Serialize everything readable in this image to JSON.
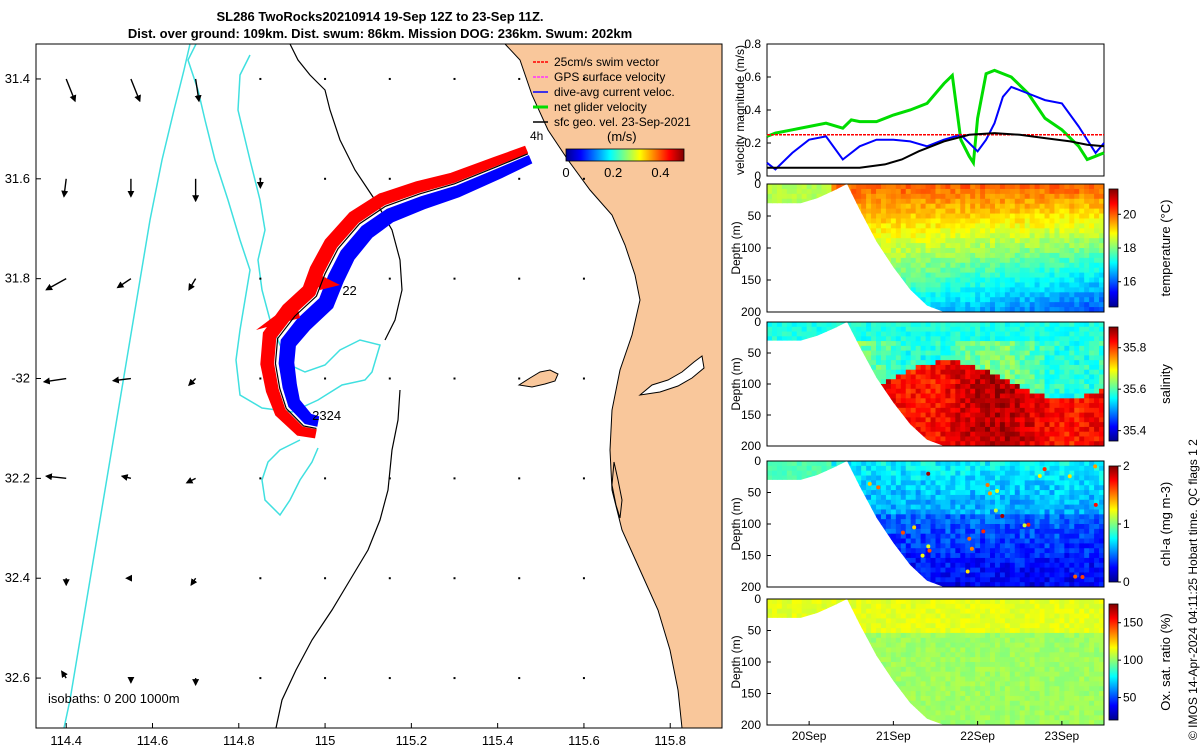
{
  "title_line1": "SL286 TwoRocks20210914 19-Sep 12Z to 23-Sep 11Z.",
  "title_line2": "Dist. over ground: 109km. Dist. swum: 86km. Mission DOG: 236km. Swum: 202km",
  "stamp": "© IMOS 14-Apr-2024 04:11:25 Hobart time. QC flags 1 2",
  "colors": {
    "land": "#f9c79b",
    "coast": "#000000",
    "isobath": "#40e0e0",
    "swim": "#ff0000",
    "current": "#0000ff",
    "net": "#00dd00",
    "geo": "#000000",
    "gps": "#ff33ff"
  },
  "chart_data": [
    {
      "type": "map",
      "xlim": [
        114.33,
        115.92
      ],
      "ylim": [
        32.7,
        31.33
      ],
      "x_ticks": [
        114.4,
        114.6,
        114.8,
        115,
        115.2,
        115.4,
        115.6,
        115.8
      ],
      "x_tick_labels": [
        "114.4",
        "114.6",
        "114.8",
        "115",
        "115.2",
        "115.4",
        "115.6",
        "115.8"
      ],
      "y_ticks": [
        31.4,
        31.6,
        31.8,
        32,
        32.2,
        32.4,
        32.6
      ],
      "y_tick_labels": [
        "31.4",
        "31.6",
        "31.8",
        "-32",
        "32.2",
        "32.4",
        "32.6"
      ],
      "legend": {
        "position": "top-right",
        "entries": [
          "25cm/s swim vector",
          "GPS surface velocity",
          "dive-avg current veloc.",
          "net glider velocity",
          "sfc geo. vel. 23-Sep-2021"
        ]
      },
      "scale_label": "4h",
      "colorbar": {
        "label": "(m/s)",
        "ticks": [
          0,
          0.2,
          0.4
        ],
        "tick_labels": [
          "0",
          "0.2",
          "0.4"
        ],
        "range": [
          0,
          0.5
        ]
      },
      "isobath_label": "isobaths: 0   200  1000m",
      "day_labels": [
        {
          "text": "22",
          "lon": 115.04,
          "lat": 31.825
        },
        {
          "text": "2324",
          "lon": 114.97,
          "lat": 32.075
        }
      ],
      "track": [
        [
          115.47,
          31.55
        ],
        [
          115.4,
          31.575
        ],
        [
          115.3,
          31.61
        ],
        [
          115.22,
          31.63
        ],
        [
          115.14,
          31.655
        ],
        [
          115.08,
          31.69
        ],
        [
          115.03,
          31.74
        ],
        [
          115.0,
          31.79
        ],
        [
          114.98,
          31.835
        ],
        [
          114.93,
          31.875
        ],
        [
          114.89,
          31.92
        ],
        [
          114.885,
          31.97
        ],
        [
          114.895,
          32.02
        ],
        [
          114.91,
          32.06
        ],
        [
          114.95,
          32.095
        ],
        [
          114.98,
          32.1
        ]
      ],
      "sfc_geo_vectors": [
        {
          "lon": 114.4,
          "lat": 31.4,
          "u": 0.4,
          "v": -1.0
        },
        {
          "lon": 114.55,
          "lat": 31.4,
          "u": 0.4,
          "v": -1.0
        },
        {
          "lon": 114.7,
          "lat": 31.4,
          "u": 0.15,
          "v": -1.0
        },
        {
          "lon": 114.4,
          "lat": 31.6,
          "u": -0.1,
          "v": -0.8
        },
        {
          "lon": 114.55,
          "lat": 31.6,
          "u": 0.0,
          "v": -0.8
        },
        {
          "lon": 114.7,
          "lat": 31.6,
          "u": 0.0,
          "v": -1.0
        },
        {
          "lon": 114.85,
          "lat": 31.6,
          "u": 0.0,
          "v": -0.4
        },
        {
          "lon": 114.4,
          "lat": 31.8,
          "u": -0.9,
          "v": -0.5
        },
        {
          "lon": 114.55,
          "lat": 31.8,
          "u": -0.6,
          "v": -0.4
        },
        {
          "lon": 114.7,
          "lat": 31.8,
          "u": -0.3,
          "v": -0.5
        },
        {
          "lon": 114.4,
          "lat": 32.0,
          "u": -1.0,
          "v": -0.15
        },
        {
          "lon": 114.55,
          "lat": 32.0,
          "u": -0.8,
          "v": -0.1
        },
        {
          "lon": 114.7,
          "lat": 32.0,
          "u": -0.3,
          "v": -0.3
        },
        {
          "lon": 114.4,
          "lat": 32.2,
          "u": -0.9,
          "v": 0.1
        },
        {
          "lon": 114.55,
          "lat": 32.2,
          "u": -0.4,
          "v": 0.1
        },
        {
          "lon": 114.7,
          "lat": 32.2,
          "u": -0.4,
          "v": -0.2
        },
        {
          "lon": 114.4,
          "lat": 32.4,
          "u": 0.0,
          "v": -0.3
        },
        {
          "lon": 114.55,
          "lat": 32.4,
          "u": -0.2,
          "v": 0.0
        },
        {
          "lon": 114.7,
          "lat": 32.4,
          "u": -0.2,
          "v": -0.3
        },
        {
          "lon": 114.4,
          "lat": 32.6,
          "u": -0.2,
          "v": 0.3
        },
        {
          "lon": 114.55,
          "lat": 32.6,
          "u": 0.0,
          "v": -0.2
        },
        {
          "lon": 114.7,
          "lat": 32.6,
          "u": 0.0,
          "v": -0.3
        }
      ]
    },
    {
      "type": "line",
      "ylabel": "velocity magnitude (m/s)",
      "ylim": [
        0,
        0.8
      ],
      "y_ticks": [
        0,
        0.2,
        0.4,
        0.6,
        0.8
      ],
      "y_tick_labels": [
        "0",
        "0.2",
        "0.4",
        "0.6",
        "0.8"
      ],
      "xlim": [
        19.5,
        23.5
      ],
      "series": [
        {
          "color": "#00dd00",
          "x": [
            19.5,
            19.6,
            19.8,
            20.0,
            20.2,
            20.4,
            20.5,
            20.6,
            20.8,
            21.0,
            21.2,
            21.4,
            21.6,
            21.7,
            21.8,
            21.9,
            21.95,
            22.0,
            22.1,
            22.2,
            22.4,
            22.6,
            22.8,
            23.0,
            23.2,
            23.3,
            23.4,
            23.5
          ],
          "y": [
            0.24,
            0.26,
            0.28,
            0.3,
            0.32,
            0.29,
            0.34,
            0.33,
            0.33,
            0.37,
            0.4,
            0.44,
            0.56,
            0.61,
            0.22,
            0.12,
            0.08,
            0.35,
            0.62,
            0.64,
            0.6,
            0.5,
            0.35,
            0.28,
            0.18,
            0.1,
            0.12,
            0.14
          ]
        },
        {
          "color": "#0000ff",
          "x": [
            19.5,
            19.6,
            19.8,
            20.0,
            20.2,
            20.4,
            20.6,
            20.8,
            21.0,
            21.2,
            21.4,
            21.6,
            21.8,
            22.0,
            22.1,
            22.2,
            22.3,
            22.4,
            22.6,
            22.8,
            23.0,
            23.2,
            23.4,
            23.5
          ],
          "y": [
            0.08,
            0.04,
            0.14,
            0.22,
            0.24,
            0.1,
            0.18,
            0.22,
            0.22,
            0.21,
            0.18,
            0.22,
            0.25,
            0.15,
            0.22,
            0.32,
            0.48,
            0.54,
            0.5,
            0.46,
            0.44,
            0.3,
            0.14,
            0.2
          ]
        },
        {
          "color": "#ff0000",
          "x": [
            19.5,
            23.5
          ],
          "y": [
            0.25,
            0.25
          ]
        },
        {
          "color": "#000000",
          "x": [
            19.5,
            19.8,
            20.0,
            20.3,
            20.6,
            20.9,
            21.1,
            21.3,
            21.6,
            21.9,
            22.2,
            22.5,
            22.8,
            23.1,
            23.3,
            23.5
          ],
          "y": [
            0.05,
            0.05,
            0.05,
            0.05,
            0.05,
            0.07,
            0.1,
            0.15,
            0.21,
            0.25,
            0.26,
            0.25,
            0.23,
            0.21,
            0.19,
            0.18
          ]
        }
      ]
    },
    {
      "type": "heatmap",
      "ylabel": "Depth (m)",
      "ylim": [
        200,
        0
      ],
      "y_ticks": [
        0,
        50,
        100,
        150,
        200
      ],
      "y_tick_labels": [
        "0",
        "50",
        "100",
        "150",
        "200"
      ],
      "colorbar": {
        "label": "temperature (°C)",
        "ticks": [
          16,
          18,
          20
        ],
        "tick_labels": [
          "16",
          "18",
          "20"
        ],
        "range": [
          14.5,
          21.5
        ]
      },
      "bottom_profile": [
        [
          19.5,
          30
        ],
        [
          19.9,
          30
        ],
        [
          20.1,
          22
        ],
        [
          20.3,
          10
        ],
        [
          20.45,
          0
        ],
        [
          20.6,
          40
        ],
        [
          20.8,
          90
        ],
        [
          21.0,
          130
        ],
        [
          21.2,
          165
        ],
        [
          21.4,
          190
        ],
        [
          21.6,
          200
        ],
        [
          23.5,
          200
        ]
      ]
    },
    {
      "type": "heatmap",
      "ylabel": "Depth (m)",
      "ylim": [
        200,
        0
      ],
      "y_ticks": [
        0,
        50,
        100,
        150,
        200
      ],
      "y_tick_labels": [
        "0",
        "50",
        "100",
        "150",
        "200"
      ],
      "colorbar": {
        "label": "salinity",
        "ticks": [
          35.4,
          35.6,
          35.8
        ],
        "tick_labels": [
          "35.4",
          "35.6",
          "35.8"
        ],
        "range": [
          35.35,
          35.9
        ]
      },
      "bottom_profile": [
        [
          19.5,
          30
        ],
        [
          19.9,
          30
        ],
        [
          20.1,
          22
        ],
        [
          20.3,
          10
        ],
        [
          20.45,
          0
        ],
        [
          20.6,
          40
        ],
        [
          20.8,
          90
        ],
        [
          21.0,
          130
        ],
        [
          21.2,
          165
        ],
        [
          21.4,
          190
        ],
        [
          21.6,
          200
        ],
        [
          23.5,
          200
        ]
      ]
    },
    {
      "type": "heatmap",
      "ylabel": "Depth (m)",
      "ylim": [
        200,
        0
      ],
      "y_ticks": [
        0,
        50,
        100,
        150,
        200
      ],
      "y_tick_labels": [
        "0",
        "50",
        "100",
        "150",
        "200"
      ],
      "colorbar": {
        "label": "chl-a (mg m-3)",
        "ticks": [
          0,
          1,
          2
        ],
        "tick_labels": [
          "0",
          "1",
          "2"
        ],
        "range": [
          0,
          2
        ]
      },
      "bottom_profile": [
        [
          19.5,
          30
        ],
        [
          19.9,
          30
        ],
        [
          20.1,
          22
        ],
        [
          20.3,
          10
        ],
        [
          20.45,
          0
        ],
        [
          20.6,
          40
        ],
        [
          20.8,
          90
        ],
        [
          21.0,
          130
        ],
        [
          21.2,
          165
        ],
        [
          21.4,
          190
        ],
        [
          21.6,
          200
        ],
        [
          23.5,
          200
        ]
      ]
    },
    {
      "type": "heatmap",
      "ylabel": "Depth (m)",
      "ylim": [
        200,
        0
      ],
      "y_ticks": [
        0,
        50,
        100,
        150,
        200
      ],
      "y_tick_labels": [
        "0",
        "50",
        "100",
        "150",
        "200"
      ],
      "colorbar": {
        "label": "Ox. sat. ratio (%)",
        "ticks": [
          50,
          100,
          150
        ],
        "tick_labels": [
          "50",
          "100",
          "150"
        ],
        "range": [
          20,
          175
        ]
      },
      "x_ticks": [
        20,
        21,
        22,
        23
      ],
      "x_tick_labels": [
        "20Sep",
        "21Sep",
        "22Sep",
        "23Sep"
      ],
      "bottom_profile": [
        [
          19.5,
          30
        ],
        [
          19.9,
          30
        ],
        [
          20.1,
          22
        ],
        [
          20.3,
          10
        ],
        [
          20.45,
          0
        ],
        [
          20.6,
          40
        ],
        [
          20.8,
          90
        ],
        [
          21.0,
          130
        ],
        [
          21.2,
          165
        ],
        [
          21.4,
          190
        ],
        [
          21.6,
          200
        ],
        [
          23.5,
          200
        ]
      ]
    }
  ]
}
